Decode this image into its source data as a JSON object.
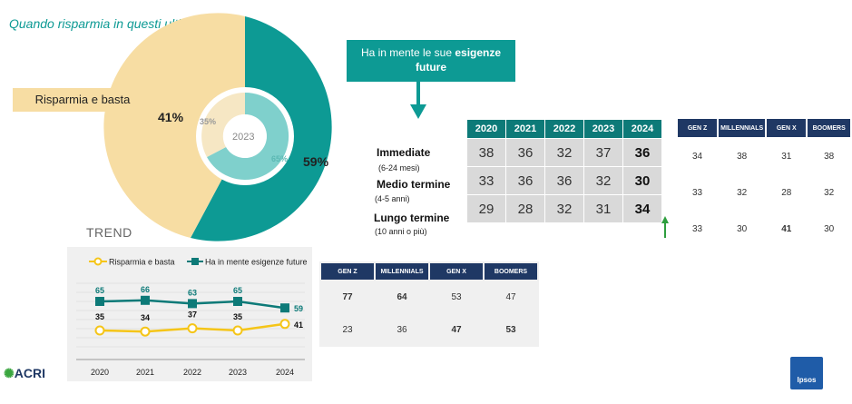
{
  "title": "Quando risparmia in questi ultimi tempi….",
  "pie": {
    "label_risparmia": "Risparmia e basta",
    "pct_risparmia": "41%",
    "pct_future": "59%",
    "inner_year": "2023",
    "inner_pct_risparmia": "35%",
    "inner_pct_future": "65%",
    "colors": {
      "risparmia": "#f7dda3",
      "future": "#0d9a94",
      "inner_future": "#7fd0cc",
      "inner_risparmia": "#f6e7c4"
    }
  },
  "future_box": {
    "text_plain": "Ha in mente le sue ",
    "text_bold": "esigenze future"
  },
  "rows": [
    {
      "label": "Immediate",
      "sub": "(6-24 mesi)"
    },
    {
      "label": "Medio termine",
      "sub": "(4-5 anni)"
    },
    {
      "label": "Lungo termine",
      "sub": "(10 anni o più)"
    }
  ],
  "year_table": {
    "headers": [
      "2020",
      "2021",
      "2022",
      "2023",
      "2024"
    ],
    "rows": [
      [
        "38",
        "36",
        "32",
        "37",
        "36"
      ],
      [
        "33",
        "36",
        "36",
        "32",
        "30"
      ],
      [
        "29",
        "28",
        "32",
        "31",
        "34"
      ]
    ]
  },
  "gen_right": {
    "headers": [
      "GEN Z",
      "MILLENNIALS",
      "GEN X",
      "BOOMERS"
    ],
    "rows": [
      [
        "34",
        "38",
        "31",
        "38"
      ],
      [
        "33",
        "32",
        "28",
        "32"
      ],
      [
        "33",
        "30",
        "41",
        "30"
      ]
    ]
  },
  "gen_mid": {
    "headers": [
      "GEN Z",
      "MILLENNIALS",
      "GEN X",
      "BOOMERS"
    ],
    "rows": [
      [
        "77",
        "64",
        "53",
        "47"
      ],
      [
        "23",
        "36",
        "47",
        "53"
      ]
    ]
  },
  "trend": {
    "title": "TREND",
    "legend": [
      "Risparmia e basta",
      "Ha in mente esigenze future"
    ]
  },
  "chart_data": {
    "type": "line",
    "x": [
      "2020",
      "2021",
      "2022",
      "2023",
      "2024"
    ],
    "series": [
      {
        "name": "Risparmia e basta",
        "values": [
          35,
          34,
          37,
          35,
          41
        ],
        "color": "#f5c518"
      },
      {
        "name": "Ha in mente esigenze future",
        "values": [
          65,
          66,
          63,
          65,
          59
        ],
        "color": "#0d7a78"
      }
    ]
  },
  "logo_acri": "ACRI",
  "logo_ipsos": "Ipsos"
}
